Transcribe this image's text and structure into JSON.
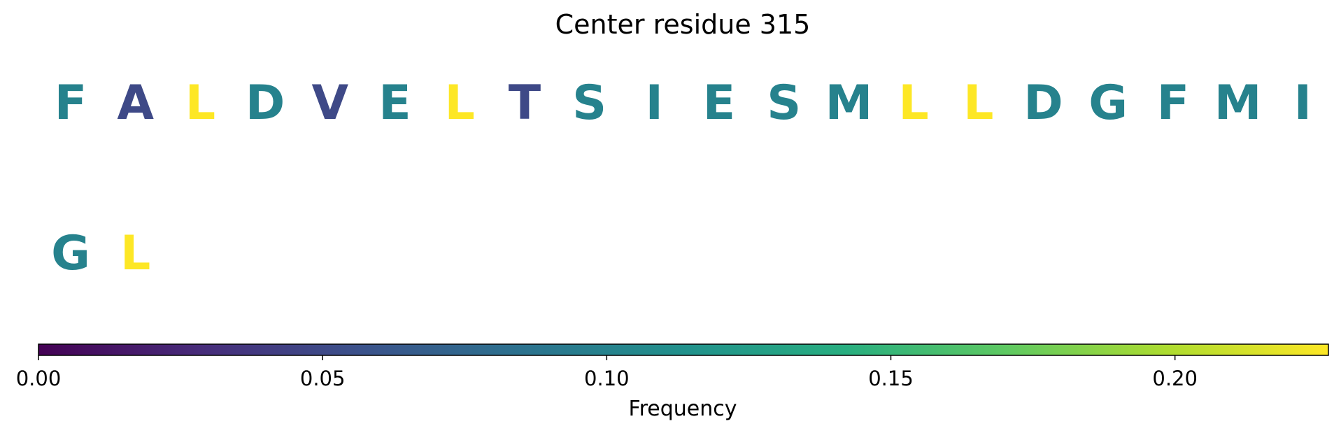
{
  "chart_data": {
    "type": "heatmap",
    "title": "Center residue 315",
    "rows": [
      [
        {
          "residue": "F",
          "frequency": 0.1
        },
        {
          "residue": "A",
          "frequency": 0.05
        },
        {
          "residue": "L",
          "frequency": 0.227
        },
        {
          "residue": "D",
          "frequency": 0.1
        },
        {
          "residue": "V",
          "frequency": 0.05
        },
        {
          "residue": "E",
          "frequency": 0.1
        },
        {
          "residue": "L",
          "frequency": 0.227
        },
        {
          "residue": "T",
          "frequency": 0.05
        },
        {
          "residue": "S",
          "frequency": 0.1
        },
        {
          "residue": "I",
          "frequency": 0.1
        },
        {
          "residue": "E",
          "frequency": 0.1
        },
        {
          "residue": "S",
          "frequency": 0.1
        },
        {
          "residue": "M",
          "frequency": 0.1
        },
        {
          "residue": "L",
          "frequency": 0.227
        },
        {
          "residue": "L",
          "frequency": 0.227
        },
        {
          "residue": "D",
          "frequency": 0.1
        },
        {
          "residue": "G",
          "frequency": 0.1
        },
        {
          "residue": "F",
          "frequency": 0.1
        },
        {
          "residue": "M",
          "frequency": 0.1
        },
        {
          "residue": "I",
          "frequency": 0.1
        }
      ],
      [
        {
          "residue": "G",
          "frequency": 0.1
        },
        {
          "residue": "L",
          "frequency": 0.227
        }
      ]
    ],
    "colorbar": {
      "colormap": "viridis",
      "range": [
        0.0,
        0.227
      ],
      "ticks": [
        0.0,
        0.05,
        0.1,
        0.15,
        0.2
      ],
      "tick_labels": [
        "0.00",
        "0.05",
        "0.10",
        "0.15",
        "0.20"
      ],
      "label": "Frequency",
      "orientation": "horizontal",
      "placement": "bottom"
    },
    "grid": false
  }
}
